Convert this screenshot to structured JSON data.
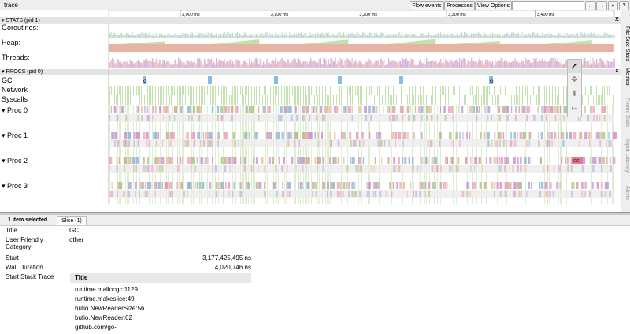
{
  "header": {
    "title": "trace",
    "buttons": [
      "Flow events",
      "Processes",
      "View Options"
    ],
    "nav": [
      "←",
      "→",
      "»",
      "?"
    ]
  },
  "ruler": {
    "ticks": [
      "3,000 ms",
      "3,100 ms",
      "3,200 ms",
      "3,300 ms",
      "3,400 ms"
    ]
  },
  "stats": {
    "title": "STATS (pid 1)",
    "close": "X",
    "rows": [
      "Goroutines:",
      "Heap:",
      "Threads:"
    ]
  },
  "procs": {
    "title": "PROCS (pid 0)",
    "close": "X",
    "rows": [
      "GC",
      "Network",
      "Syscalls"
    ],
    "procs": [
      "Proc 0",
      "Proc 1",
      "Proc 2",
      "Proc 3"
    ],
    "gc_labels": [
      "G",
      "G",
      "GC"
    ]
  },
  "side_tabs": [
    "File Size Stats",
    "Metrics",
    "Frame Data",
    "Input Latency",
    "Alerts"
  ],
  "selection": {
    "summary": "1 item selected.",
    "tab": "Slice (1)"
  },
  "details": {
    "rows": [
      {
        "label": "Title",
        "value": "GC"
      },
      {
        "label": "User Friendly Category",
        "value": "other"
      },
      {
        "label": "Start",
        "value": "3,177,425,495 ns"
      },
      {
        "label": "Wall Duration",
        "value": "4,020,746 ns"
      },
      {
        "label": "Start Stack Trace"
      }
    ]
  },
  "stack": {
    "header": "Title",
    "frames": [
      "runtime.mallocgc:1129",
      "runtime.makeslice:49",
      "bufio.NewReaderSize:56",
      "bufio.NewReader:62",
      "github.com/go-"
    ]
  }
}
